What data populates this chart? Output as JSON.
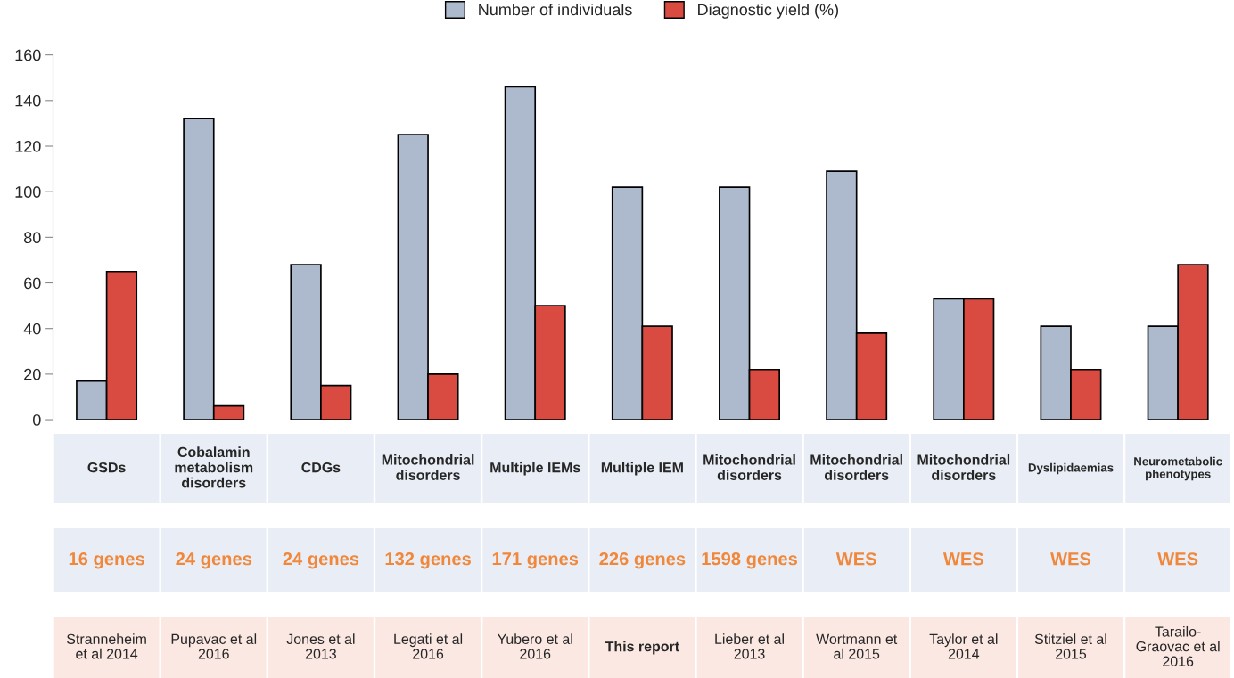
{
  "chart_data": {
    "type": "bar",
    "categories": [
      "GSDs",
      "Cobalamin\nmetabolism\ndisorders",
      "CDGs",
      "Mitochondrial\ndisorders",
      "Multiple IEMs",
      "Multiple IEM",
      "Mitochondrial\ndisorders",
      "Mitochondrial\ndisorders",
      "Mitochondrial\ndisorders",
      "Dyslipidaemias",
      "Neurometabolic\nphenotypes"
    ],
    "series": [
      {
        "name": "Number of individuals",
        "color": "#adb9cc",
        "values": [
          17,
          132,
          68,
          125,
          146,
          102,
          102,
          109,
          53,
          41,
          41
        ]
      },
      {
        "name": "Diagnostic yield (%)",
        "color": "#d94a41",
        "values": [
          65,
          6,
          15,
          20,
          50,
          41,
          22,
          38,
          53,
          22,
          68
        ]
      }
    ],
    "annotations": [
      "16 genes",
      "24 genes",
      "24 genes",
      "132 genes",
      "171 genes",
      "226 genes",
      "1598 genes",
      "WES",
      "WES",
      "WES",
      "WES",
      "Stranneheim\net al 2014",
      "Pupavac et al\n2016",
      "Jones et al\n2013",
      "Legati et al\n2016",
      "Yubero et al\n2016",
      "This report",
      "Lieber et al\n2013",
      "Wortmann et\nal 2015",
      "Taylor et al\n2014",
      "Stitziel et al\n2015",
      "Tarailo-\nGraovac et al\n2016"
    ],
    "ylim": [
      0,
      160
    ],
    "yticks": [
      0,
      20,
      40,
      60,
      80,
      100,
      120,
      140,
      160
    ],
    "grid": false,
    "legend": "top"
  }
}
